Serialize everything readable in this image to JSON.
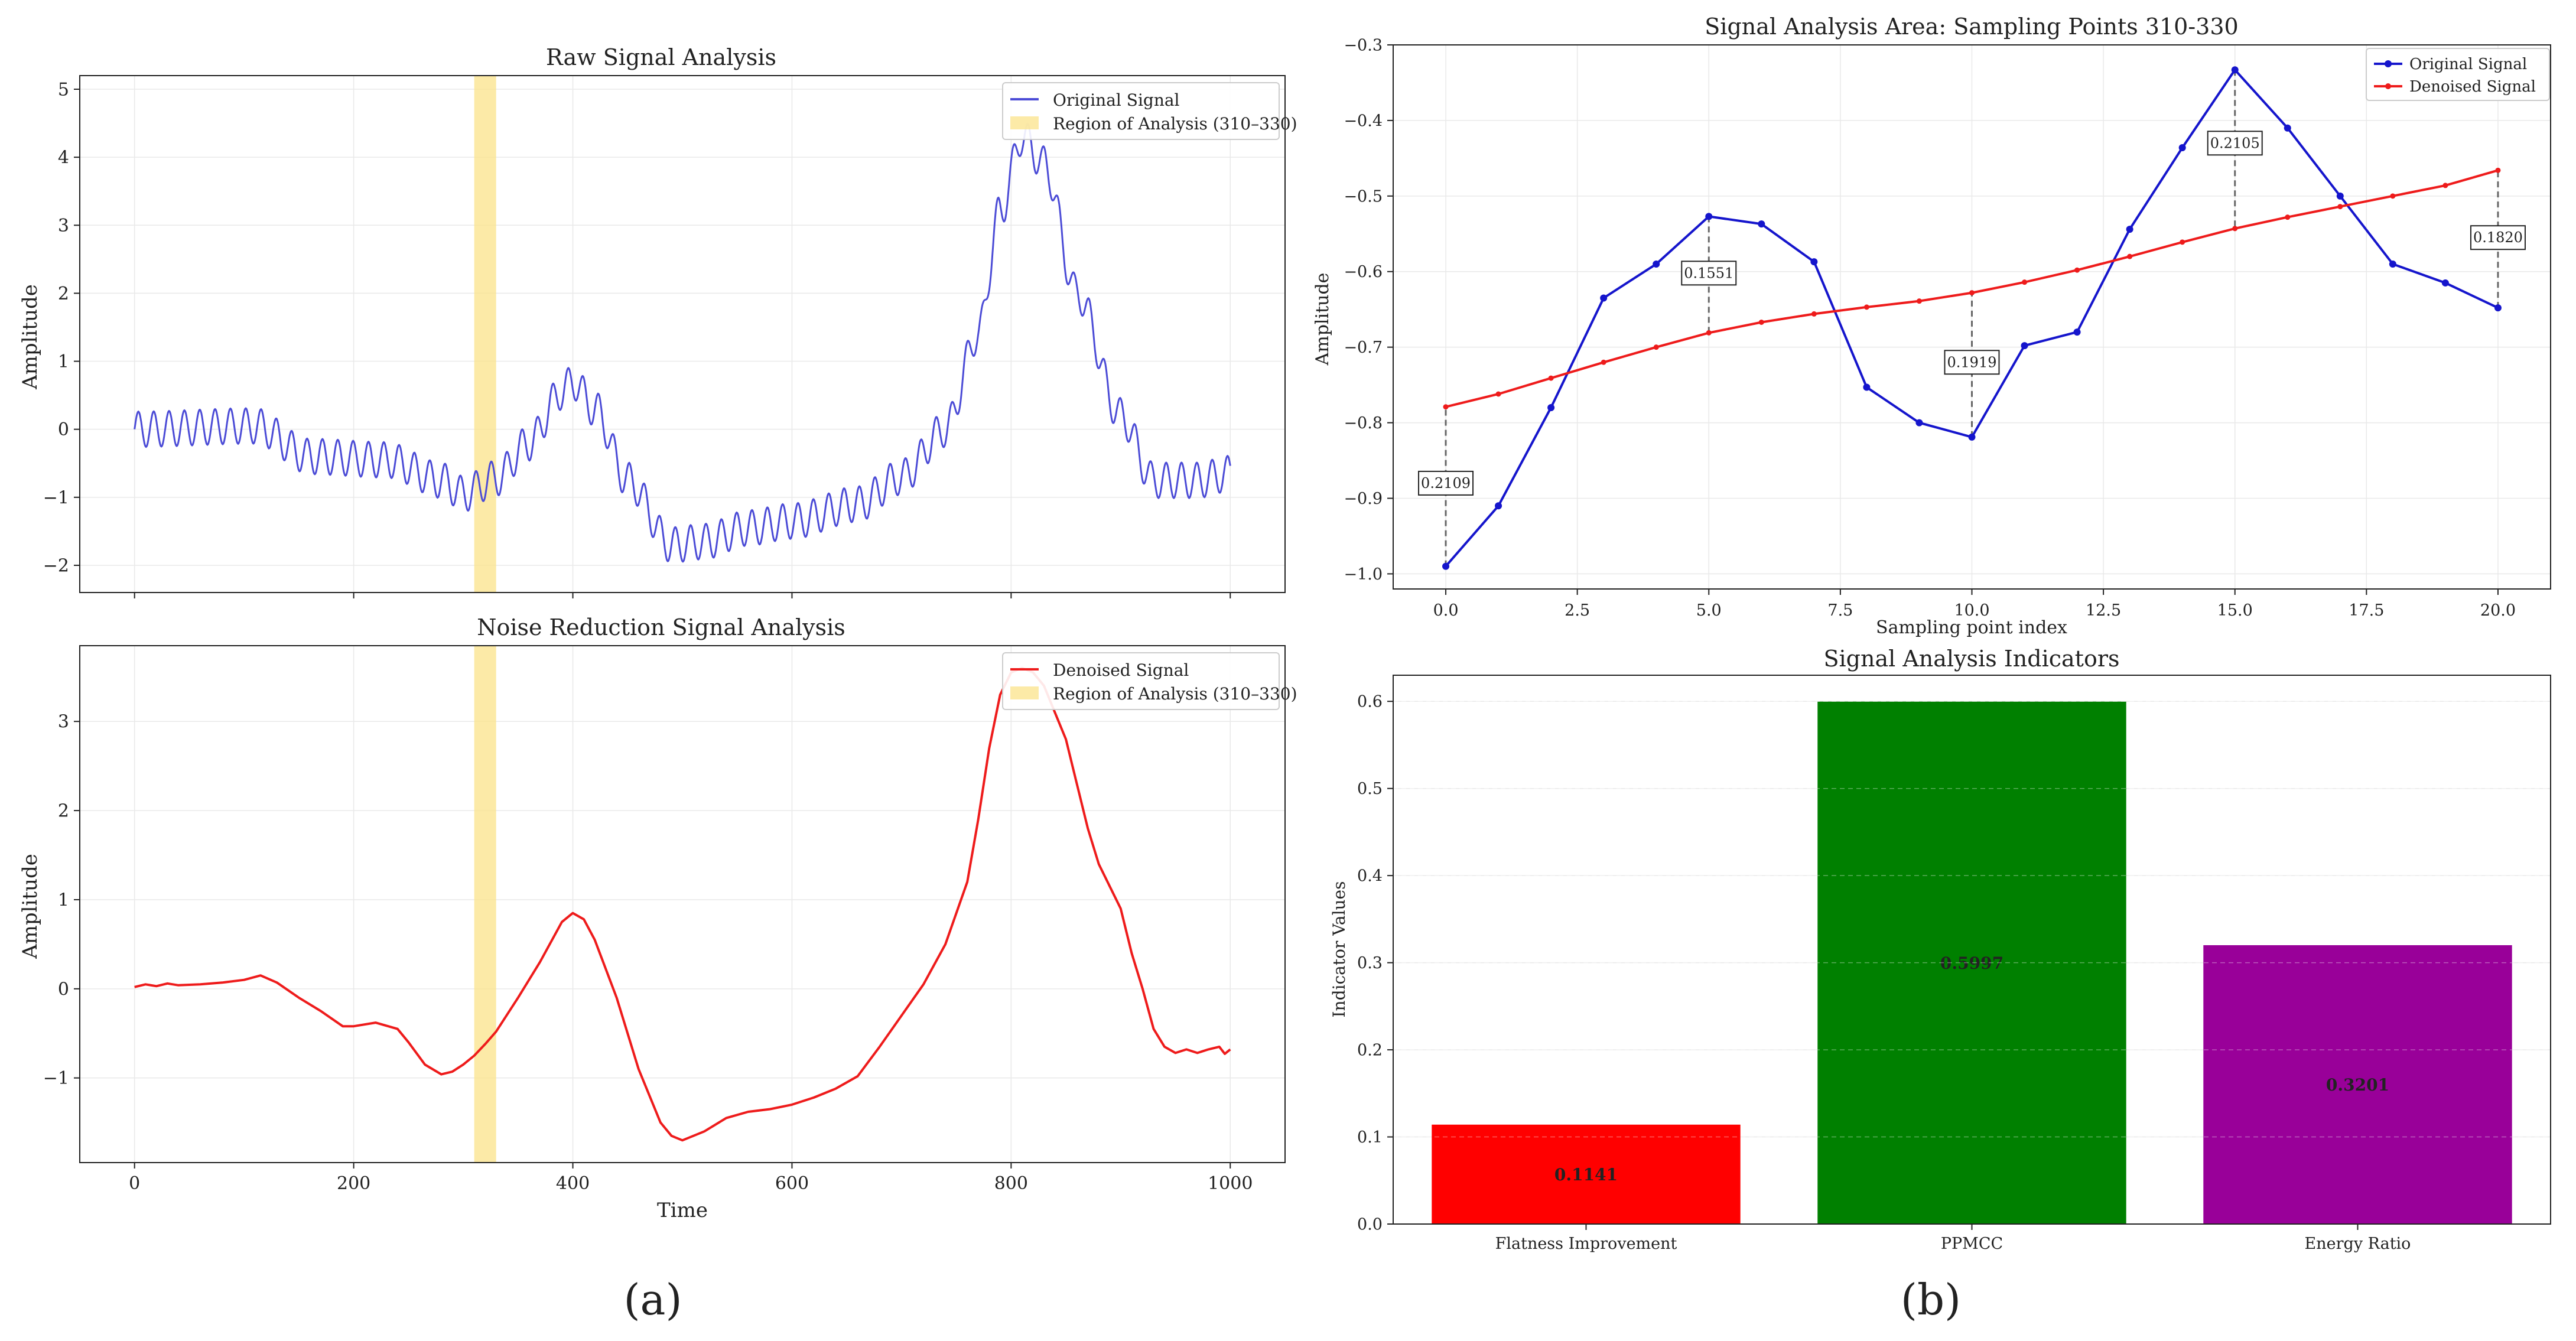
{
  "colors": {
    "original": "#4b4bd6",
    "original_zoom": "#1515cc",
    "denoised": "#ee1b1b",
    "highlight": "#fbe38a",
    "bar_colors": [
      "#ff0000",
      "#008000",
      "#990099"
    ]
  },
  "panel_labels": [
    "(a)",
    "(b)"
  ],
  "chart_data": [
    {
      "id": "raw",
      "type": "line",
      "title": "Raw Signal Analysis",
      "xlabel": "",
      "ylabel": "Amplitude",
      "xlim": [
        -50,
        1050
      ],
      "ylim": [
        -2.4,
        5.2
      ],
      "xticks": [
        0,
        200,
        400,
        600,
        800,
        1000
      ],
      "yticks": [
        -2,
        -1,
        0,
        1,
        2,
        3,
        4,
        5
      ],
      "xtick_labels_visible": false,
      "highlight_range": [
        310,
        330
      ],
      "legend": [
        "Original Signal",
        "Region of Analysis (310–330)"
      ],
      "series": [
        {
          "name": "Original Signal",
          "noise_amp": 0.26,
          "noise_period": 14
        }
      ],
      "baseline_knots": [
        [
          0,
          0.0
        ],
        [
          110,
          0.05
        ],
        [
          160,
          -0.4
        ],
        [
          230,
          -0.45
        ],
        [
          280,
          -0.75
        ],
        [
          300,
          -0.95
        ],
        [
          330,
          -0.72
        ],
        [
          360,
          -0.2
        ],
        [
          390,
          0.55
        ],
        [
          400,
          0.7
        ],
        [
          420,
          0.3
        ],
        [
          450,
          -0.75
        ],
        [
          490,
          -1.7
        ],
        [
          520,
          -1.65
        ],
        [
          560,
          -1.45
        ],
        [
          600,
          -1.35
        ],
        [
          660,
          -1.1
        ],
        [
          700,
          -0.7
        ],
        [
          740,
          0.0
        ],
        [
          770,
          1.4
        ],
        [
          790,
          3.2
        ],
        [
          810,
          4.3
        ],
        [
          830,
          3.9
        ],
        [
          860,
          2.0
        ],
        [
          900,
          0.2
        ],
        [
          930,
          -0.75
        ],
        [
          970,
          -0.75
        ],
        [
          1000,
          -0.65
        ]
      ]
    },
    {
      "id": "denoised",
      "type": "line",
      "title": "Noise Reduction Signal Analysis",
      "xlabel": "Time",
      "ylabel": "Amplitude",
      "xlim": [
        -50,
        1050
      ],
      "ylim": [
        -1.95,
        3.85
      ],
      "xticks": [
        0,
        200,
        400,
        600,
        800,
        1000
      ],
      "yticks": [
        -1,
        0,
        1,
        2,
        3
      ],
      "highlight_range": [
        310,
        330
      ],
      "legend": [
        "Denoised Signal",
        "Region of Analysis (310–330)"
      ],
      "x": [
        0,
        10,
        20,
        30,
        40,
        60,
        80,
        100,
        115,
        130,
        150,
        170,
        190,
        200,
        220,
        240,
        250,
        265,
        280,
        290,
        300,
        310,
        320,
        330,
        350,
        370,
        390,
        400,
        410,
        420,
        440,
        460,
        480,
        490,
        500,
        520,
        540,
        560,
        580,
        600,
        620,
        640,
        660,
        680,
        700,
        720,
        740,
        760,
        770,
        780,
        790,
        800,
        810,
        820,
        830,
        840,
        850,
        860,
        870,
        880,
        900,
        910,
        920,
        930,
        940,
        950,
        960,
        970,
        980,
        990,
        995,
        1000
      ],
      "values": [
        0.02,
        0.05,
        0.03,
        0.06,
        0.04,
        0.05,
        0.07,
        0.1,
        0.15,
        0.07,
        -0.1,
        -0.25,
        -0.42,
        -0.42,
        -0.38,
        -0.45,
        -0.6,
        -0.85,
        -0.96,
        -0.93,
        -0.85,
        -0.75,
        -0.62,
        -0.48,
        -0.1,
        0.3,
        0.75,
        0.85,
        0.78,
        0.55,
        -0.1,
        -0.9,
        -1.5,
        -1.65,
        -1.7,
        -1.6,
        -1.45,
        -1.38,
        -1.35,
        -1.3,
        -1.22,
        -1.12,
        -0.98,
        -0.65,
        -0.3,
        0.05,
        0.5,
        1.2,
        1.9,
        2.7,
        3.3,
        3.55,
        3.6,
        3.55,
        3.4,
        3.1,
        2.8,
        2.3,
        1.8,
        1.4,
        0.9,
        0.4,
        0.0,
        -0.45,
        -0.65,
        -0.72,
        -0.68,
        -0.72,
        -0.68,
        -0.65,
        -0.73,
        -0.68
      ]
    },
    {
      "id": "zoom",
      "type": "line",
      "title": "Signal Analysis Area: Sampling Points 310-330",
      "xlabel": "Sampling point index",
      "ylabel": "Amplitude",
      "xlim": [
        -1.0,
        21.0
      ],
      "ylim": [
        -1.02,
        -0.3
      ],
      "xticks": [
        0.0,
        2.5,
        5.0,
        7.5,
        10.0,
        12.5,
        15.0,
        17.5,
        20.0
      ],
      "xtick_labels": [
        "0.0",
        "2.5",
        "5.0",
        "7.5",
        "10.0",
        "12.5",
        "15.0",
        "17.5",
        "20.0"
      ],
      "yticks": [
        -1.0,
        -0.9,
        -0.8,
        -0.7,
        -0.6,
        -0.5,
        -0.4,
        -0.3
      ],
      "ytick_labels": [
        "−1.0",
        "−0.9",
        "−0.8",
        "−0.7",
        "−0.6",
        "−0.5",
        "−0.4",
        "−0.3"
      ],
      "legend": [
        "Original Signal",
        "Denoised Signal"
      ],
      "x": [
        0,
        1,
        2,
        3,
        4,
        5,
        6,
        7,
        8,
        9,
        10,
        11,
        12,
        13,
        14,
        15,
        16,
        17,
        18,
        19,
        20
      ],
      "series": [
        {
          "name": "Original Signal",
          "values": [
            -0.99,
            -0.91,
            -0.78,
            -0.635,
            -0.59,
            -0.527,
            -0.537,
            -0.587,
            -0.753,
            -0.8,
            -0.819,
            -0.698,
            -0.68,
            -0.544,
            -0.436,
            -0.333,
            -0.41,
            -0.5,
            -0.59,
            -0.615,
            -0.648
          ]
        },
        {
          "name": "Denoised Signal",
          "values": [
            -0.779,
            -0.762,
            -0.741,
            -0.72,
            -0.7,
            -0.681,
            -0.667,
            -0.656,
            -0.647,
            -0.639,
            -0.628,
            -0.614,
            -0.598,
            -0.58,
            -0.561,
            -0.543,
            -0.528,
            -0.514,
            -0.5,
            -0.486,
            -0.466
          ]
        }
      ],
      "annotations": [
        {
          "x": 0,
          "label": "0.2109",
          "label_y": -0.88
        },
        {
          "x": 5,
          "label": "0.1551",
          "label_y": -0.602
        },
        {
          "x": 10,
          "label": "0.1919",
          "label_y": -0.72
        },
        {
          "x": 15,
          "label": "0.2105",
          "label_y": -0.43
        },
        {
          "x": 20,
          "label": "0.1820",
          "label_y": -0.555
        }
      ]
    },
    {
      "id": "indicators",
      "type": "bar",
      "title": "Signal Analysis Indicators",
      "xlabel": "",
      "ylabel": "Indicator Values",
      "ylim": [
        0,
        0.63
      ],
      "yticks": [
        0.0,
        0.1,
        0.2,
        0.3,
        0.4,
        0.5,
        0.6
      ],
      "ytick_labels": [
        "0.0",
        "0.1",
        "0.2",
        "0.3",
        "0.4",
        "0.5",
        "0.6"
      ],
      "categories": [
        "Flatness Improvement",
        "PPMCC",
        "Energy Ratio"
      ],
      "values": [
        0.1141,
        0.5997,
        0.3201
      ],
      "value_labels": [
        "0.1141",
        "0.5997",
        "0.3201"
      ]
    }
  ]
}
